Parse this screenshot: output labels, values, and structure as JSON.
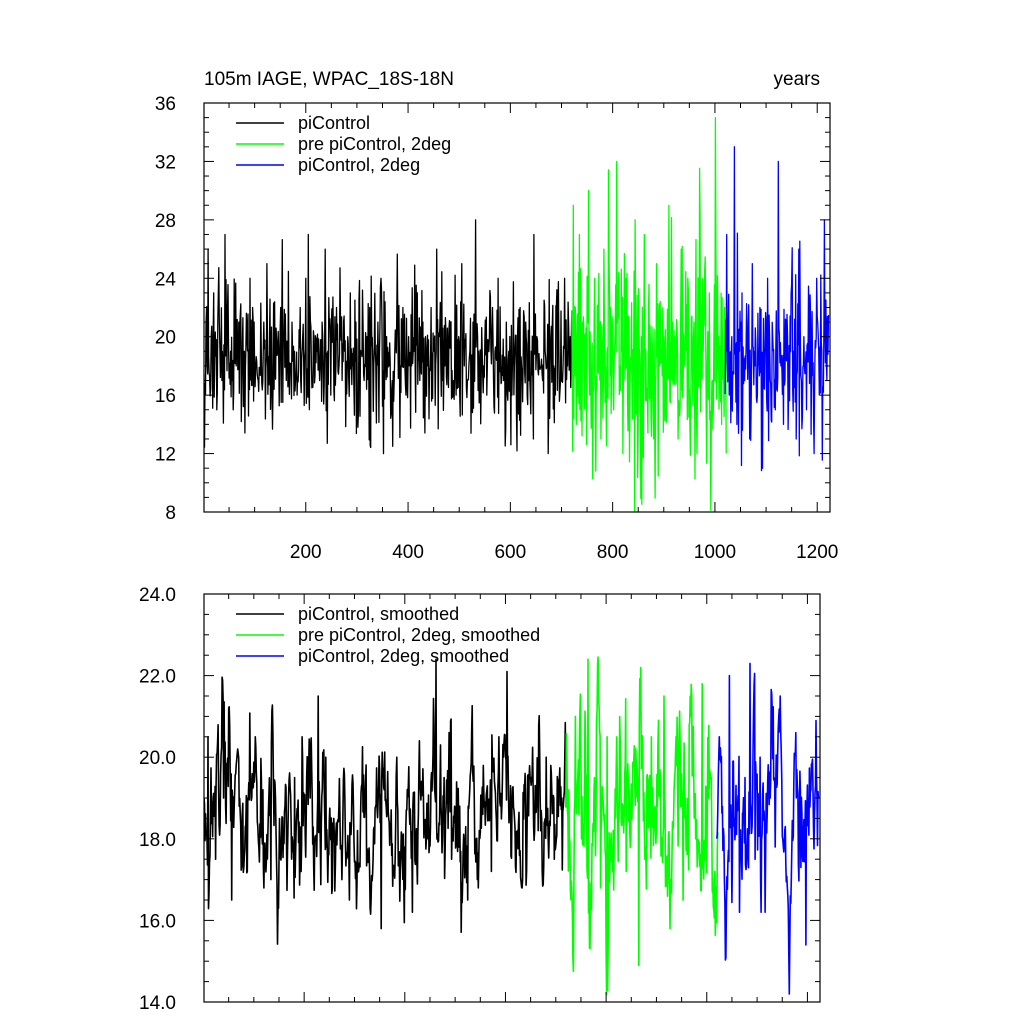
{
  "chart_data": [
    {
      "type": "line",
      "title": "105m IAGE, WPAC_18S-18N",
      "title_right": "years",
      "ylim": [
        8,
        36
      ],
      "xlim": [
        1,
        1225
      ],
      "yticks": [
        8,
        12,
        16,
        20,
        24,
        28,
        32,
        36
      ],
      "ytick_labels": [
        "8",
        "12",
        "16",
        "20",
        "24",
        "28",
        "32",
        "36"
      ],
      "xticks": [
        200,
        400,
        600,
        800,
        1000,
        1200
      ],
      "xtick_labels": [
        "200",
        "400",
        "600",
        "800",
        "1000",
        "1200"
      ],
      "legend_position": "top-left",
      "grid": false,
      "series": [
        {
          "name": "piControl",
          "color": "#000000",
          "x_range": [
            1,
            720
          ],
          "mean": 18.5,
          "std": 2.5,
          "values": [
            16,
            26,
            20,
            23,
            15,
            21,
            17,
            27,
            22,
            19,
            15,
            18,
            21,
            17,
            19,
            20,
            24,
            22,
            18,
            17,
            19,
            21,
            25,
            20,
            16,
            18,
            19,
            22,
            20,
            17,
            18,
            21,
            19,
            16,
            22,
            20,
            24,
            27,
            18,
            20,
            19,
            17,
            21,
            26,
            19,
            16,
            20,
            22,
            18,
            17,
            19,
            20,
            23,
            18,
            21,
            15,
            19,
            17,
            20,
            22,
            18,
            19,
            21,
            24,
            12,
            20,
            18,
            17,
            19,
            21,
            18,
            22,
            16,
            20,
            18,
            19,
            23,
            17,
            21,
            20,
            18,
            22,
            19,
            26,
            20,
            17,
            18,
            19,
            21,
            17,
            16,
            20,
            25,
            18,
            17,
            19,
            21,
            28,
            19,
            17,
            18,
            16,
            20,
            22,
            19,
            24,
            18,
            17,
            21,
            19,
            16,
            18,
            20,
            22,
            18,
            21,
            17,
            19,
            27,
            20,
            18,
            17,
            19,
            12,
            20,
            18,
            22,
            19,
            17,
            24,
            18,
            20
          ]
        },
        {
          "name": "pre piControl, 2deg",
          "color": "#00ff00",
          "x_range": [
            720,
            1022
          ],
          "mean": 18.5,
          "std": 3.8,
          "values": [
            29,
            14,
            27,
            21,
            17,
            30,
            16,
            24,
            18,
            13,
            26,
            19,
            22,
            15,
            32,
            18,
            12,
            24,
            21,
            17,
            28,
            14,
            20,
            27,
            16,
            19,
            13,
            25,
            18,
            22,
            15,
            29,
            17,
            20,
            13,
            26,
            18,
            24,
            16,
            21,
            12,
            28,
            19,
            15,
            23,
            17,
            35,
            20,
            14,
            22
          ]
        },
        {
          "name": "piControl, 2deg",
          "color": "#0000ff",
          "x_range": [
            1020,
            1222
          ],
          "mean": 18.3,
          "std": 3.0,
          "values": [
            27,
            16,
            20,
            33,
            14,
            19,
            23,
            17,
            21,
            13,
            25,
            18,
            16,
            22,
            11,
            19,
            24,
            17,
            20,
            15,
            32,
            18,
            14,
            21,
            16,
            23,
            19,
            13,
            26,
            17,
            20,
            15,
            22,
            18,
            12,
            24,
            16,
            19,
            28,
            17
          ]
        }
      ]
    },
    {
      "type": "line",
      "title": "",
      "ylim": [
        14.0,
        24.0
      ],
      "xlim": [
        1,
        1225
      ],
      "yticks": [
        14,
        16,
        18,
        20,
        22,
        24
      ],
      "ytick_labels": [
        "14.0",
        "16.0",
        "18.0",
        "20.0",
        "22.0",
        "24.0"
      ],
      "xticks": [
        200,
        400,
        600,
        800,
        1000,
        1200
      ],
      "xtick_labels": [],
      "legend_position": "top-left",
      "grid": false,
      "series": [
        {
          "name": "piControl, smoothed",
          "color": "#000000",
          "x_range": [
            1,
            720
          ],
          "mean": 18.6,
          "std": 1.05,
          "values": [
            20.5,
            17.5,
            19.0,
            16.5,
            18.8,
            17.2,
            20.5,
            19.2,
            17.0,
            16.3,
            18.0,
            19.5,
            20.5,
            19.0,
            21.5,
            20.0,
            18.5,
            17.0,
            16.5,
            18.2,
            19.0,
            17.5,
            15.8,
            18.5,
            20.0,
            17.8,
            16.2,
            19.2,
            18.0,
            22.4,
            19.5,
            17.5,
            18.8,
            16.5,
            18.0,
            19.8,
            17.2,
            20.5,
            22.1,
            18.5,
            17.0,
            19.5,
            18.2,
            20.0,
            17.5,
            19.0
          ]
        },
        {
          "name": "pre piControl, 2deg, smoothed",
          "color": "#00ff00",
          "x_range": [
            720,
            1022
          ],
          "mean": 18.6,
          "std": 1.5,
          "values": [
            19.2,
            21.0,
            18.0,
            22.4,
            19.5,
            16.8,
            20.5,
            18.2,
            21.0,
            17.2,
            19.0,
            14.9,
            17.5,
            20.5,
            18.8,
            21.5,
            17.0,
            19.8,
            16.5,
            20.8,
            18.0,
            21.8,
            19.0,
            17.2
          ]
        },
        {
          "name": "piControl, 2deg, smoothed",
          "color": "#0000ff",
          "x_range": [
            1020,
            1222
          ],
          "mean": 18.6,
          "std": 1.3,
          "values": [
            20.5,
            17.0,
            22.0,
            18.5,
            16.2,
            19.5,
            22.3,
            17.5,
            20.0,
            16.2,
            19.0,
            17.8,
            21.5,
            18.3,
            16.6,
            20.6,
            17.3,
            15.4,
            19.2,
            20.9
          ]
        }
      ]
    }
  ]
}
